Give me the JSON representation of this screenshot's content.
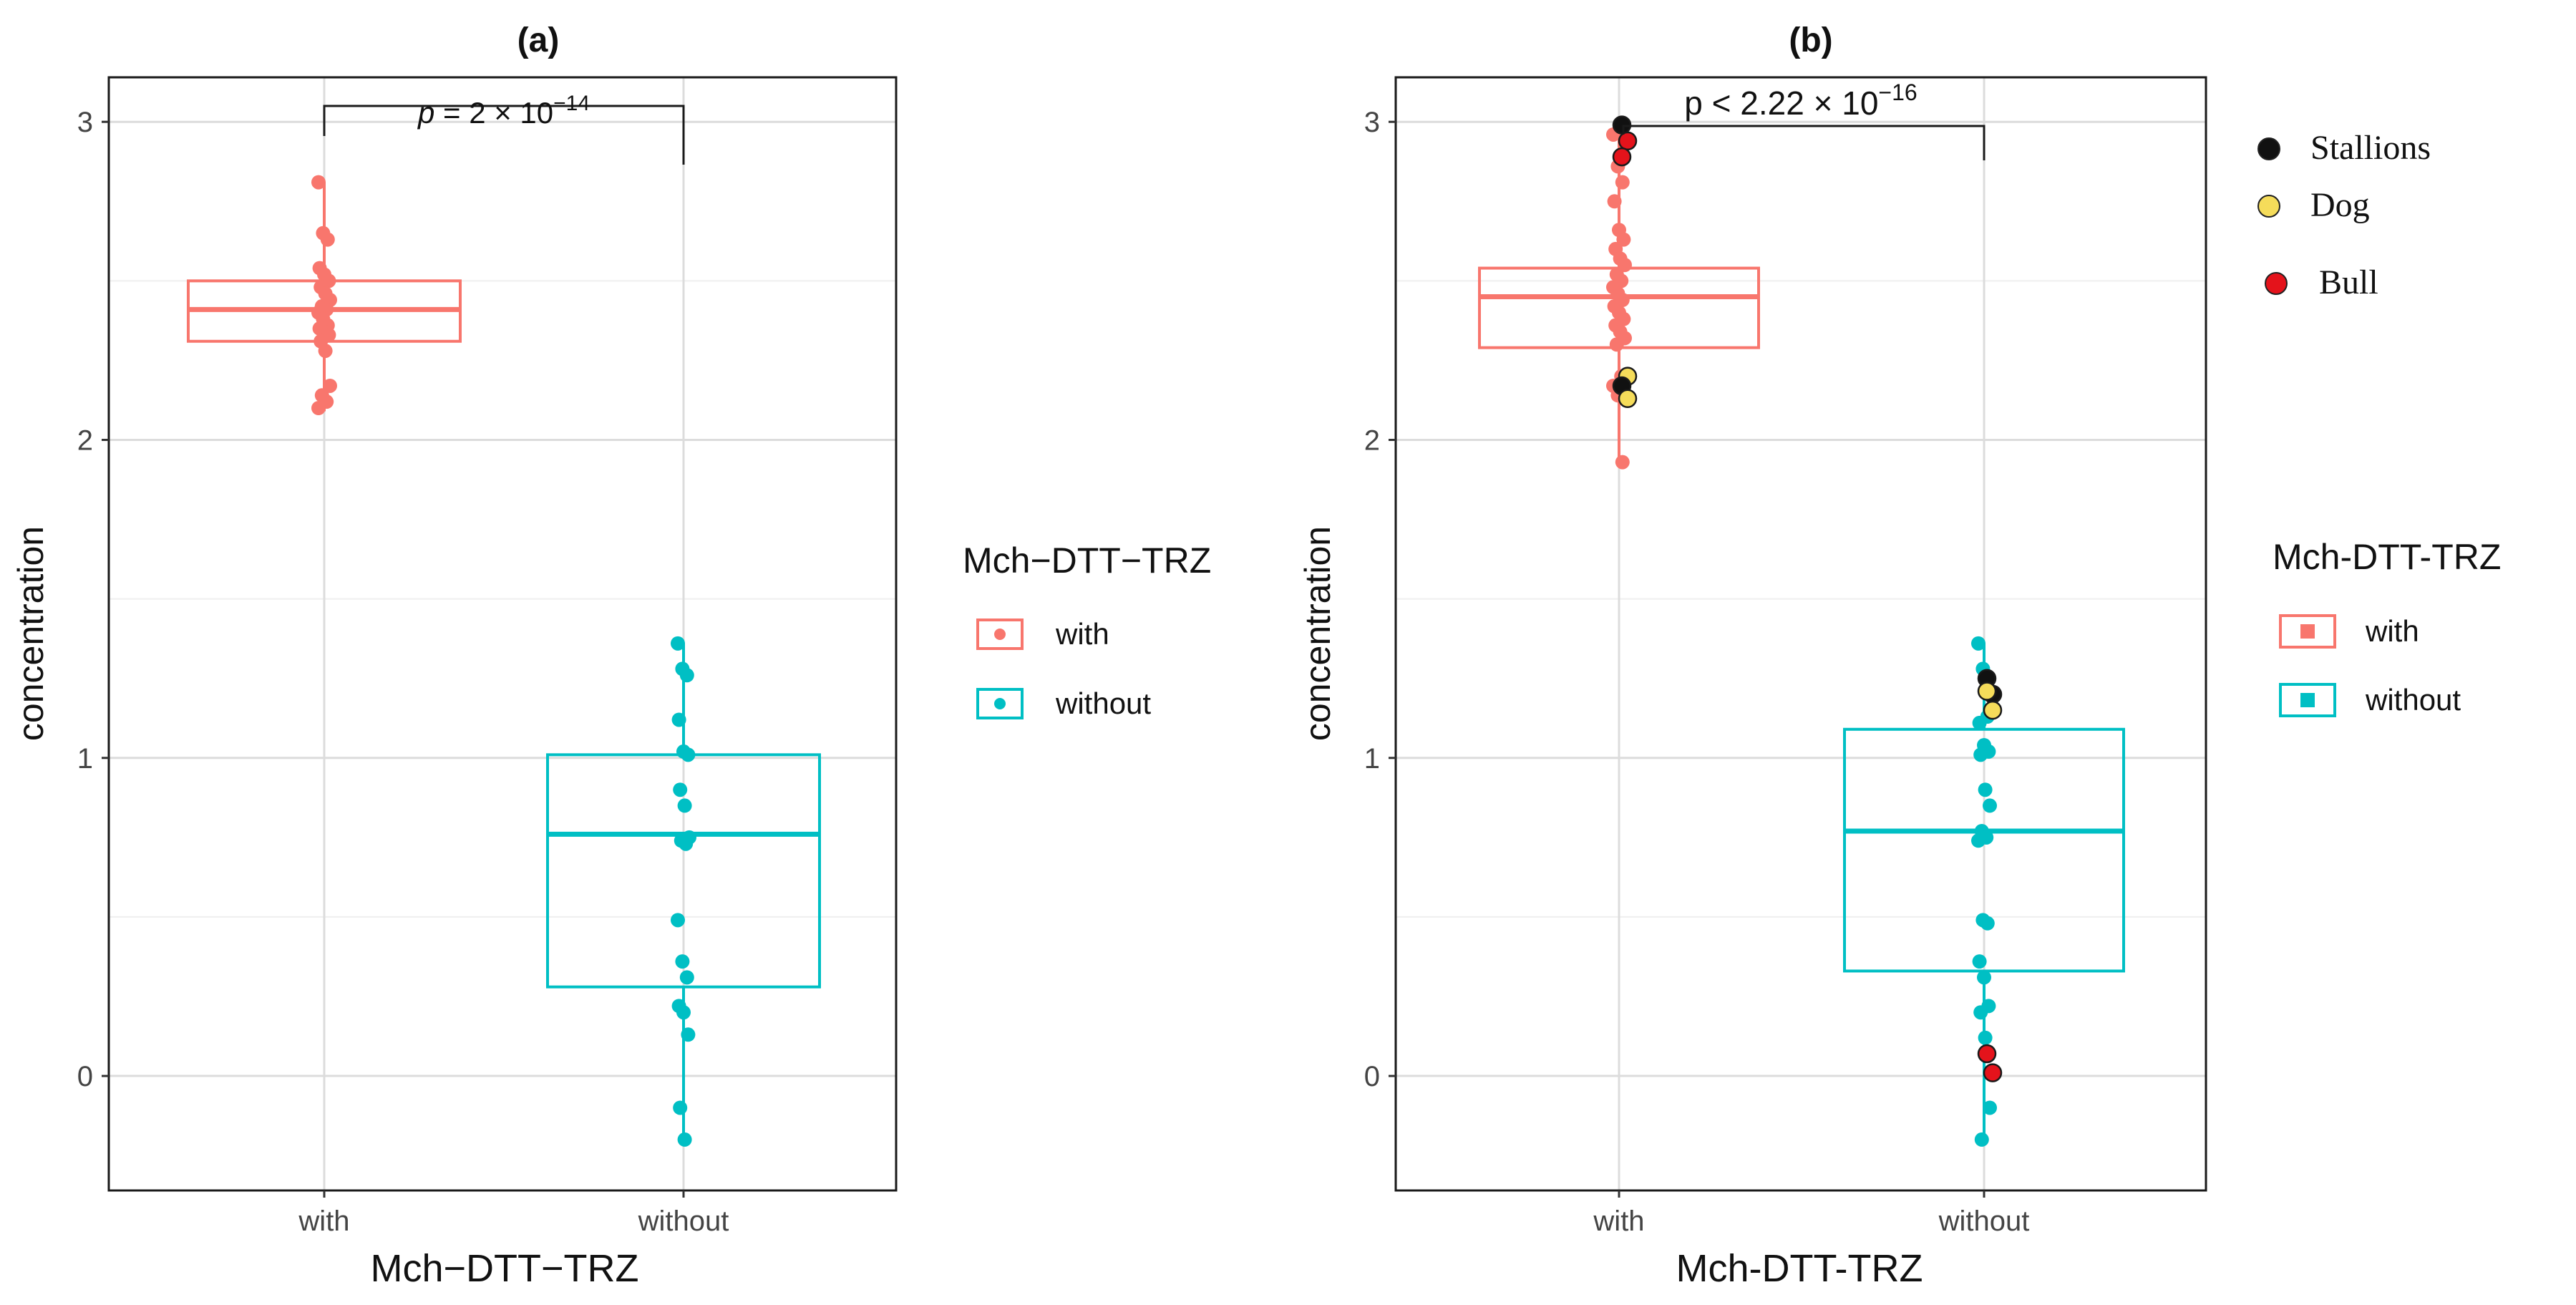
{
  "chart_data": [
    {
      "type": "boxplot",
      "panel": "(a)",
      "title": "(a)",
      "xlabel": "Mch−DTT−TRZ",
      "ylabel": "concentration",
      "categories": [
        "with",
        "without"
      ],
      "ylim": [
        -0.36,
        3.14
      ],
      "yticks": [
        "0",
        "1",
        "2",
        "3"
      ],
      "grid": true,
      "annotation": {
        "prefix": "p",
        "text": " = 2 × 10",
        "sup": "−14"
      },
      "legend": {
        "position": "right",
        "title": "Mch−DTT−TRZ",
        "entries": [
          "with",
          "without"
        ]
      },
      "boxes": [
        {
          "name": "with",
          "color": "#F8766D",
          "q1": 2.31,
          "median": 2.41,
          "q3": 2.5,
          "whisker_low": 2.09,
          "whisker_high": 2.81,
          "points": [
            2.81,
            2.65,
            2.63,
            2.54,
            2.52,
            2.5,
            2.48,
            2.46,
            2.44,
            2.42,
            2.41,
            2.4,
            2.38,
            2.36,
            2.35,
            2.34,
            2.33,
            2.31,
            2.28,
            2.17,
            2.14,
            2.12,
            2.1
          ]
        },
        {
          "name": "without",
          "color": "#00BFC4",
          "q1": 0.28,
          "median": 0.76,
          "q3": 1.01,
          "whisker_low": -0.2,
          "whisker_high": 1.36,
          "points": [
            1.36,
            1.28,
            1.26,
            1.12,
            1.02,
            1.01,
            0.9,
            0.85,
            0.75,
            0.74,
            0.73,
            0.49,
            0.36,
            0.31,
            0.22,
            0.2,
            0.13,
            -0.1,
            -0.2
          ]
        }
      ]
    },
    {
      "type": "boxplot",
      "panel": "(b)",
      "title": "(b)",
      "xlabel": "Mch-DTT-TRZ",
      "ylabel": "concentration",
      "categories": [
        "with",
        "without"
      ],
      "ylim": [
        -0.36,
        3.14
      ],
      "yticks": [
        "0",
        "1",
        "2",
        "3"
      ],
      "grid": true,
      "annotation": {
        "prefix": "p",
        "text": " < 2.22 × 10",
        "sup": "−16"
      },
      "legend": {
        "position": "right",
        "title": "Mch-DTT-TRZ",
        "entries": [
          "with",
          "without"
        ]
      },
      "species_legend": [
        {
          "label": "Stallions",
          "color": "#111111"
        },
        {
          "label": "Dog",
          "color": "#F5DC5A"
        },
        {
          "label": "Bull",
          "color": "#E4131B"
        }
      ],
      "boxes": [
        {
          "name": "with",
          "color": "#F8766D",
          "q1": 2.29,
          "median": 2.45,
          "q3": 2.54,
          "whisker_low": 1.93,
          "whisker_high": 2.96,
          "points": [
            2.96,
            2.86,
            2.81,
            2.75,
            2.66,
            2.63,
            2.6,
            2.57,
            2.55,
            2.52,
            2.5,
            2.48,
            2.46,
            2.44,
            2.42,
            2.4,
            2.38,
            2.36,
            2.34,
            2.32,
            2.3,
            2.2,
            2.17,
            2.14,
            1.93
          ],
          "species_points": [
            {
              "species": "Stallions",
              "y": 2.99
            },
            {
              "species": "Bull",
              "y": 2.94
            },
            {
              "species": "Bull",
              "y": 2.89
            },
            {
              "species": "Dog",
              "y": 2.2
            },
            {
              "species": "Stallions",
              "y": 2.17
            },
            {
              "species": "Dog",
              "y": 2.13
            }
          ]
        },
        {
          "name": "without",
          "color": "#00BFC4",
          "q1": 0.33,
          "median": 0.77,
          "q3": 1.09,
          "whisker_low": -0.2,
          "whisker_high": 1.36,
          "points": [
            1.36,
            1.28,
            1.13,
            1.11,
            1.04,
            1.02,
            1.01,
            0.9,
            0.85,
            0.77,
            0.75,
            0.74,
            0.49,
            0.48,
            0.36,
            0.31,
            0.22,
            0.2,
            0.12,
            -0.1,
            -0.2
          ],
          "species_points": [
            {
              "species": "Stallions",
              "y": 1.25
            },
            {
              "species": "Stallions",
              "y": 1.2
            },
            {
              "species": "Dog",
              "y": 1.21
            },
            {
              "species": "Dog",
              "y": 1.15
            },
            {
              "species": "Bull",
              "y": 0.07
            },
            {
              "species": "Bull",
              "y": 0.01
            }
          ]
        }
      ]
    }
  ]
}
